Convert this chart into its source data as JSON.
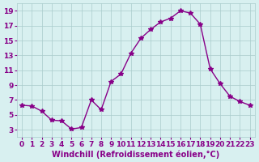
{
  "hours": [
    0,
    1,
    2,
    3,
    4,
    5,
    6,
    7,
    8,
    9,
    10,
    11,
    12,
    13,
    14,
    15,
    16,
    17,
    18,
    19,
    20,
    21,
    22,
    23
  ],
  "values": [
    6.3,
    6.2,
    5.5,
    4.3,
    4.2,
    3.1,
    3.3,
    7.0,
    5.7,
    9.5,
    10.5,
    13.3,
    15.3,
    16.5,
    17.5,
    18.0,
    19.0,
    18.7,
    17.2,
    11.2,
    9.2,
    7.5,
    6.8,
    6.3
  ],
  "line_color": "#880088",
  "marker": "*",
  "marker_size": 4,
  "bg_color": "#d8f0f0",
  "grid_color": "#aacccc",
  "xlabel": "Windchill (Refroidissement éolien,°C)",
  "xlim": [
    -0.5,
    23.5
  ],
  "ylim": [
    2,
    20
  ],
  "yticks": [
    3,
    5,
    7,
    9,
    11,
    13,
    15,
    17,
    19
  ],
  "xticks": [
    0,
    1,
    2,
    3,
    4,
    5,
    6,
    7,
    8,
    9,
    10,
    11,
    12,
    13,
    14,
    15,
    16,
    17,
    18,
    19,
    20,
    21,
    22,
    23
  ],
  "tick_fontsize": 6.5,
  "xlabel_fontsize": 7,
  "tick_color": "#880088",
  "label_color": "#880088"
}
